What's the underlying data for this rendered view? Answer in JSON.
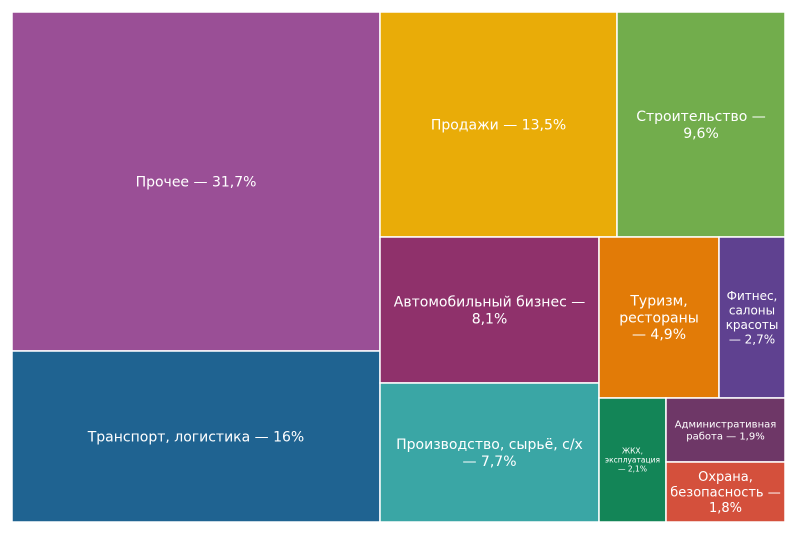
{
  "chart_data": {
    "type": "treemap",
    "title": "",
    "items": [
      {
        "name": "Прочее",
        "value": 31.7,
        "label": "Прочее — 31,7%",
        "color": "#9a4f96"
      },
      {
        "name": "Транспорт, логистика",
        "value": 16,
        "label": "Транспорт, логистика — 16%",
        "color": "#1f6391"
      },
      {
        "name": "Продажи",
        "value": 13.5,
        "label": "Продажи — 13,5%",
        "color": "#e9ac08"
      },
      {
        "name": "Строительство",
        "value": 9.6,
        "label": "Строительство — 9,6%",
        "color": "#72ad4c"
      },
      {
        "name": "Автомобильный бизнес",
        "value": 8.1,
        "label": "Автомобильный бизнес — 8,1%",
        "color": "#8f316b"
      },
      {
        "name": "Производство, сырьё, с/х",
        "value": 7.7,
        "label": "Производство, сырьё, с/х — 7,7%",
        "color": "#3aa6a5"
      },
      {
        "name": "Туризм, рестораны",
        "value": 4.9,
        "label": "Туризм, рестораны — 4,9%",
        "color": "#e27b07"
      },
      {
        "name": "Фитнес, салоны красоты",
        "value": 2.7,
        "label": "Фитнес, салоны красоты — 2,7%",
        "color": "#5f4190"
      },
      {
        "name": "ЖКХ, эксплуатация",
        "value": 2.1,
        "label": "ЖКХ, эксплуатация — 2,1%",
        "color": "#138557"
      },
      {
        "name": "Административная работа",
        "value": 1.9,
        "label": "Административная работа — 1,9%",
        "color": "#6e3767"
      },
      {
        "name": "Охрана, безопасность",
        "value": 1.8,
        "label": "Охрана, безопасность — 1,8%",
        "color": "#d4503c"
      }
    ]
  }
}
